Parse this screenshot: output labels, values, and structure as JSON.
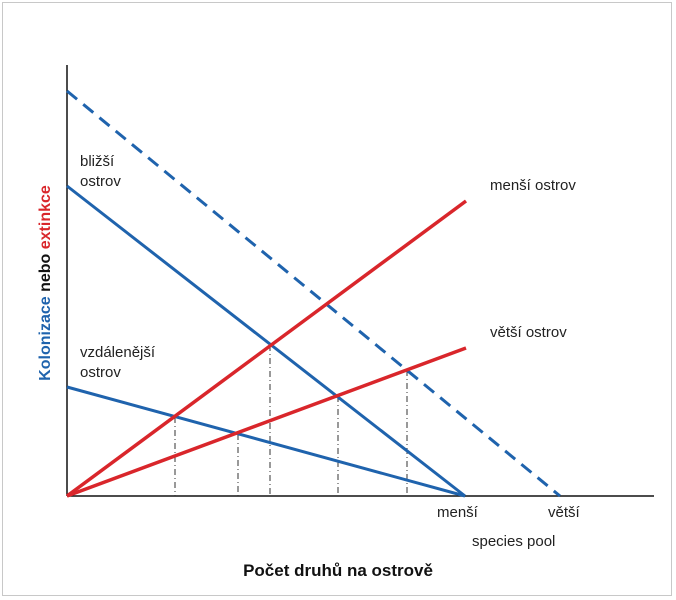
{
  "colors": {
    "colonization": "#1f63ad",
    "extinction": "#d9262b",
    "axis": "#111111",
    "text": "#222222"
  },
  "axis_labels": {
    "y_part1": "Kolonizace",
    "y_part2": " nebo ",
    "y_part3": "extinkce",
    "x": "Počet druhů na ostrově"
  },
  "labels": {
    "near_island": [
      "bližší",
      "ostrov"
    ],
    "far_island": [
      "vzdálenější",
      "ostrov"
    ],
    "small_island": "menší ostrov",
    "large_island": "větší ostrov",
    "smaller_pool": "menší",
    "larger_pool": "větší",
    "species_pool": "species pool"
  }
}
